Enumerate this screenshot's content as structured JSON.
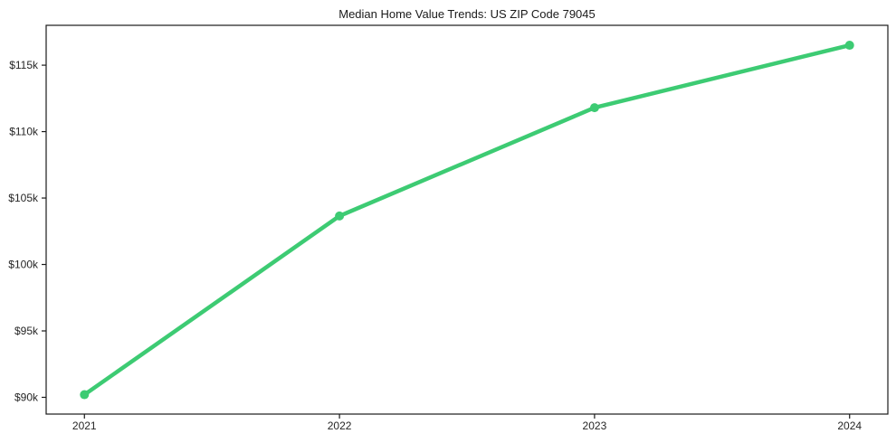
{
  "page": {
    "background": "#ffffff"
  },
  "chart_data": {
    "type": "line",
    "title": "Median Home Value Trends: US ZIP Code 79045",
    "x": [
      2021,
      2022,
      2023,
      2024
    ],
    "x_tick_labels": [
      "2021",
      "2022",
      "2023",
      "2024"
    ],
    "values": [
      90200,
      103650,
      111800,
      116500
    ],
    "series_name": "Median Home Value",
    "y_ticks": [
      90000,
      95000,
      100000,
      105000,
      110000,
      115000
    ],
    "y_tick_labels": [
      "$90k",
      "$95k",
      "$100k",
      "$105k",
      "$110k",
      "$115k"
    ],
    "xlim": [
      2020.85,
      2024.15
    ],
    "ylim": [
      88740,
      118000
    ],
    "xlabel": "",
    "ylabel": "",
    "grid": false,
    "legend": "none",
    "line_color": "#3dcb73",
    "axis_color": "#1a1a1a",
    "text_color": "#262626",
    "line_width": 4.5,
    "marker": "circle",
    "marker_size": 10
  }
}
